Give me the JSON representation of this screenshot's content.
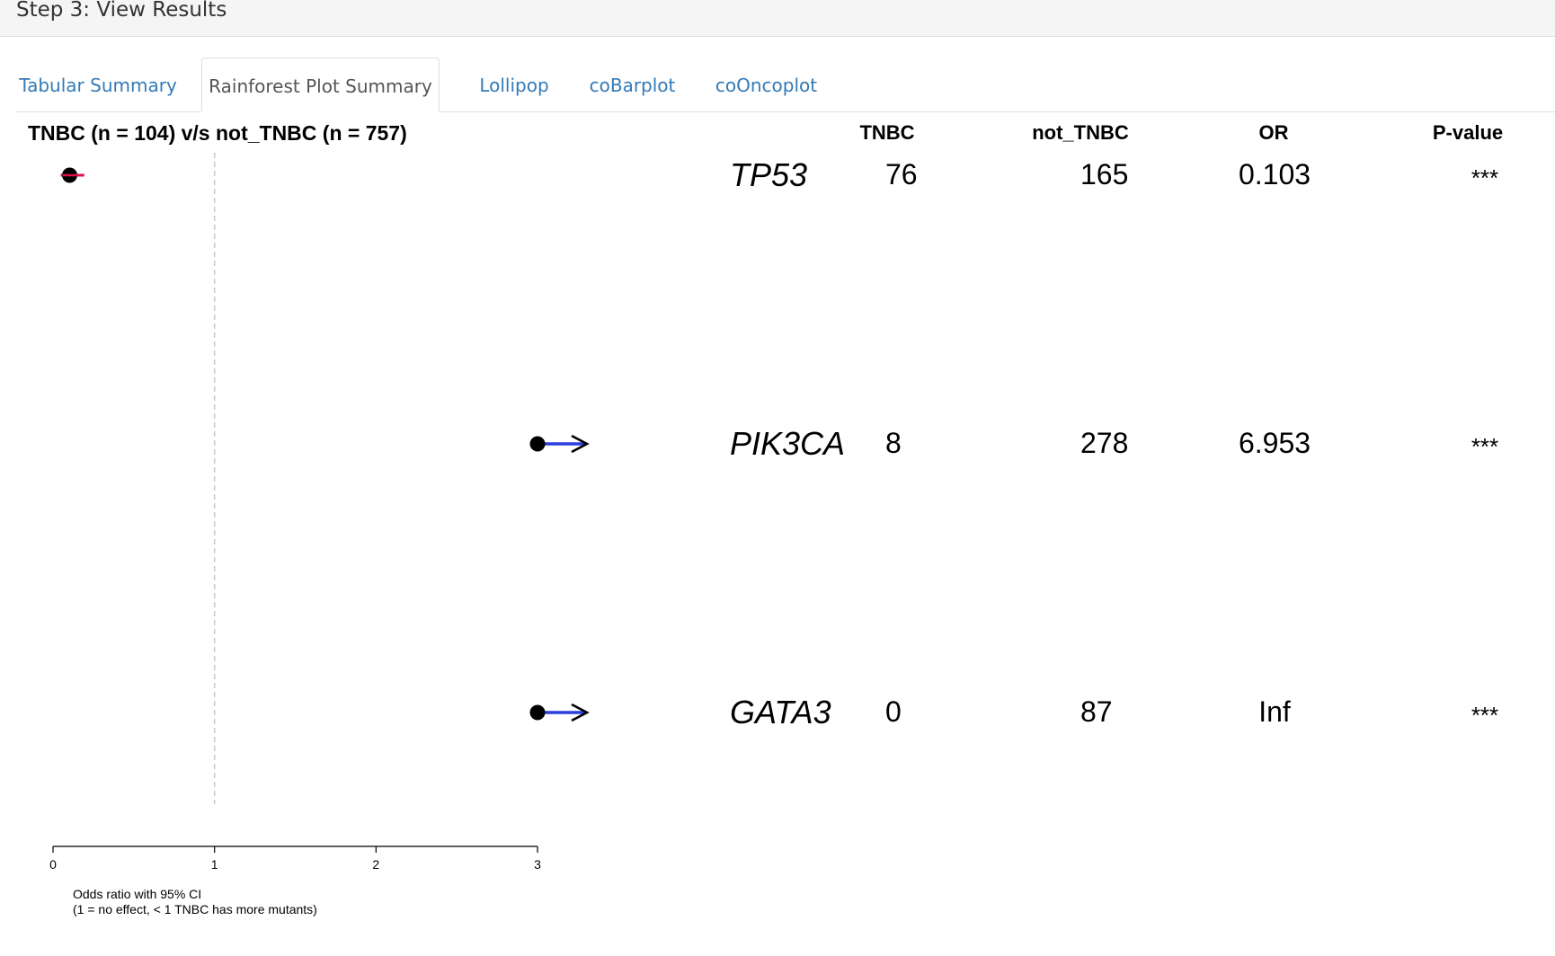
{
  "step": {
    "title": "Step 3: View Results"
  },
  "tabs": [
    {
      "label": "Tabular Summary",
      "active": false
    },
    {
      "label": "Rainforest Plot Summary",
      "active": true
    },
    {
      "label": "Lollipop",
      "active": false
    },
    {
      "label": "coBarplot",
      "active": false
    },
    {
      "label": "coOncoplot",
      "active": false
    }
  ],
  "colors": {
    "tab_link": "#337ab7",
    "ci_red": "#e0114a",
    "ci_blue": "#2a3fdc"
  },
  "chart_data": {
    "type": "forest",
    "title": "TNBC (n = 104) v/s not_TNBC (n = 757)",
    "columns": [
      "TNBC",
      "not_TNBC",
      "OR",
      "P-value"
    ],
    "xlabel": "Odds ratio with 95% CI",
    "xlabel2": "(1 = no effect, < 1 TNBC has more mutants)",
    "xlim": [
      0,
      3
    ],
    "xticks": [
      0,
      1,
      2,
      3
    ],
    "reference_line": 1,
    "rows": [
      {
        "gene": "TP53",
        "tnbc": "76",
        "not_tnbc": "165",
        "or_label": "0.103",
        "pval": "***",
        "or": 0.103,
        "ci_low": 0.07,
        "ci_high": 0.16,
        "truncated": false
      },
      {
        "gene": "PIK3CA",
        "tnbc": "8",
        "not_tnbc": "278",
        "or_label": "6.953",
        "pval": "***",
        "or": 3,
        "ci_low": 3,
        "ci_high": 3,
        "truncated": true
      },
      {
        "gene": "GATA3",
        "tnbc": "0",
        "not_tnbc": "87",
        "or_label": "Inf",
        "pval": "***",
        "or": 3,
        "ci_low": 3,
        "ci_high": 3,
        "truncated": true
      }
    ]
  }
}
